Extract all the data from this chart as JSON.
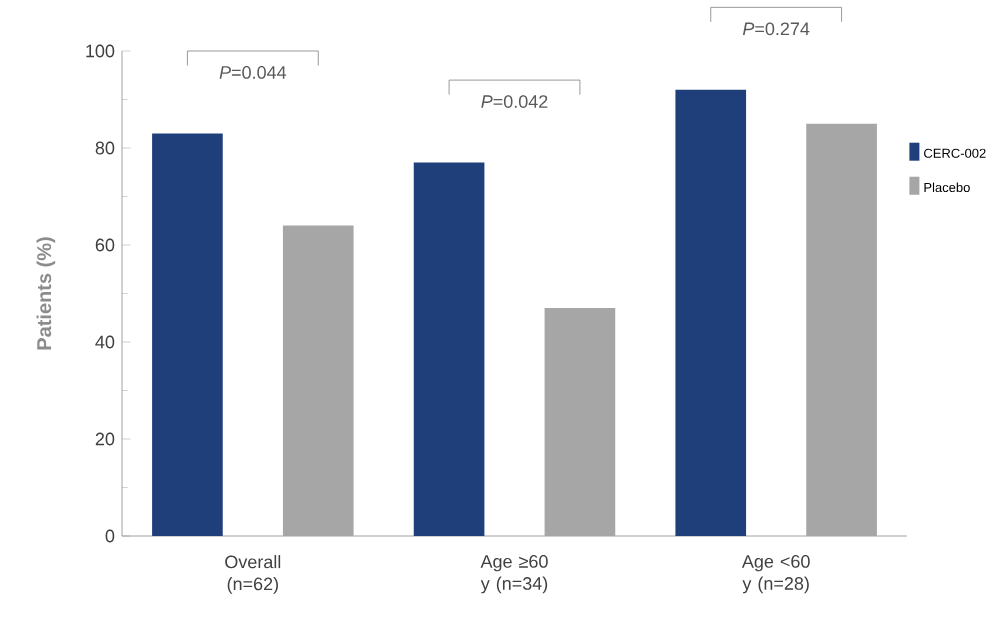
{
  "chart_data": {
    "type": "bar",
    "ylabel": "Patients (%)",
    "categories": [
      "Overall (n=62)",
      "Age ≥60 y (n=34)",
      "Age <60 y (n=28)"
    ],
    "series": [
      {
        "name": "CERC-002",
        "color": "#1f3f7a",
        "values": [
          83,
          77,
          92
        ]
      },
      {
        "name": "Placebo",
        "color": "#a6a6a6",
        "values": [
          64,
          47,
          85
        ]
      }
    ],
    "ylim": [
      0,
      100
    ],
    "yticks": [
      0,
      20,
      40,
      60,
      80,
      100
    ],
    "legend": "right",
    "grid": false,
    "annotations": [
      "*P*=0.044",
      "*P*=0.042",
      "*P*=0.274"
    ]
  }
}
